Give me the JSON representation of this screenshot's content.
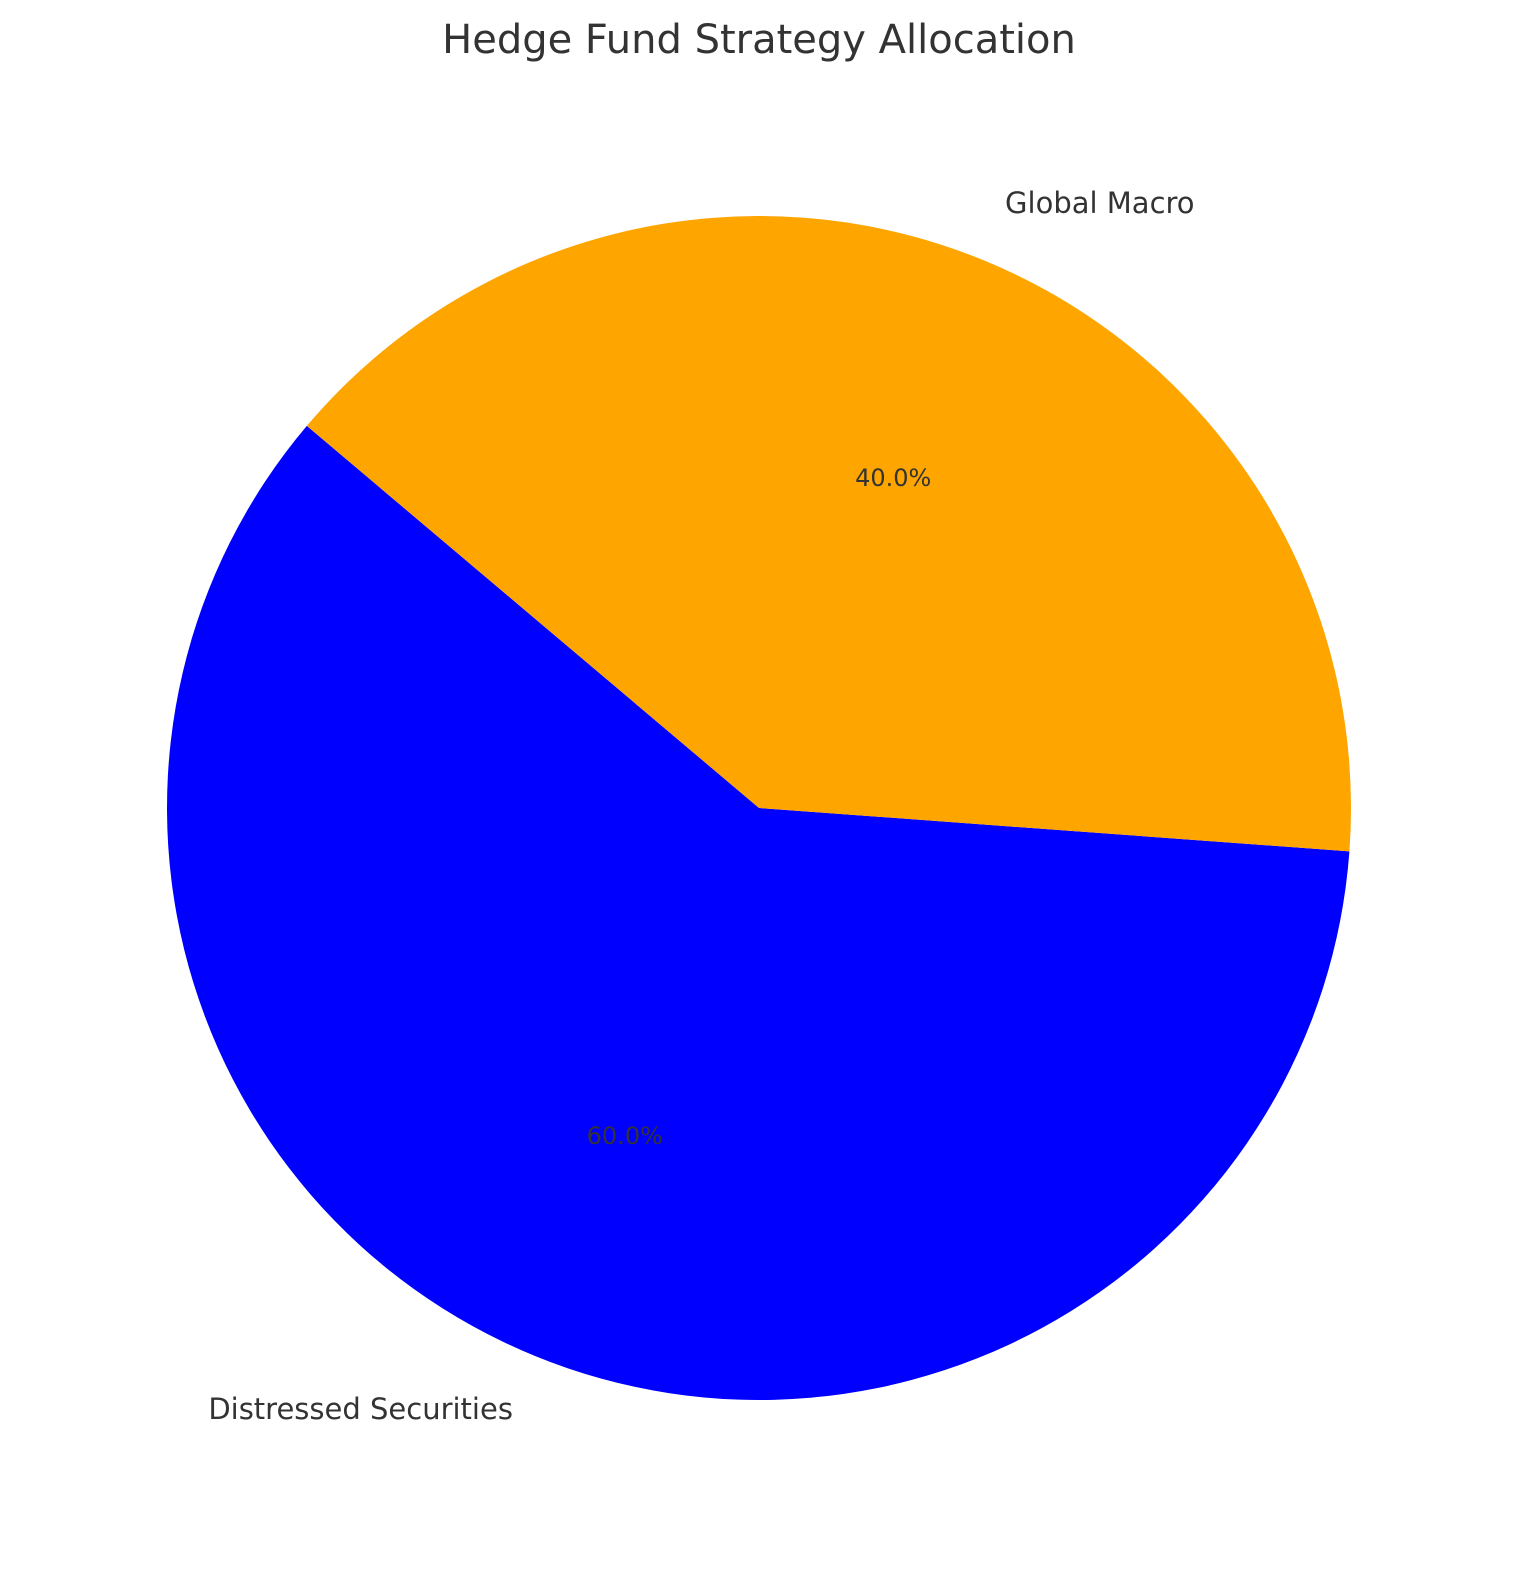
{
  "chart_data": {
    "type": "pie",
    "title": "Hedge Fund Strategy Allocation",
    "categories": [
      "Distressed Securities",
      "Global Macro"
    ],
    "values": [
      60.0,
      40.0
    ],
    "percent_labels": [
      "60.0%",
      "40.0%"
    ],
    "colors": [
      "#0000ff",
      "#ffa500"
    ],
    "legend": "none"
  }
}
